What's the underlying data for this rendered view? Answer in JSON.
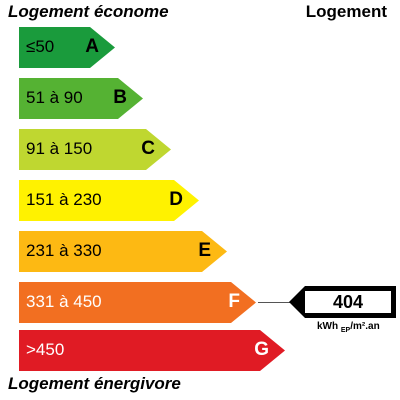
{
  "header": {
    "left_title": "Logement économe",
    "right_title": "Logement"
  },
  "footer": {
    "left_title": "Logement énergivore"
  },
  "classes": [
    {
      "range": "≤50",
      "letter": "A",
      "color": "#1a9b3c"
    },
    {
      "range": "51 à 90",
      "letter": "B",
      "color": "#55b233"
    },
    {
      "range": "91 à 150",
      "letter": "C",
      "color": "#bfd730"
    },
    {
      "range": "151 à 230",
      "letter": "D",
      "color": "#fff200"
    },
    {
      "range": "231 à 330",
      "letter": "E",
      "color": "#fdb913"
    },
    {
      "range": "331 à 450",
      "letter": "F",
      "color": "#f26f21"
    },
    {
      "range": ">450",
      "letter": "G",
      "color": "#e01b24"
    }
  ],
  "indicator": {
    "value": "404",
    "unit_main": "kWh",
    "unit_sub": "EP",
    "unit_tail": "/m².an",
    "class_letter": "F"
  }
}
